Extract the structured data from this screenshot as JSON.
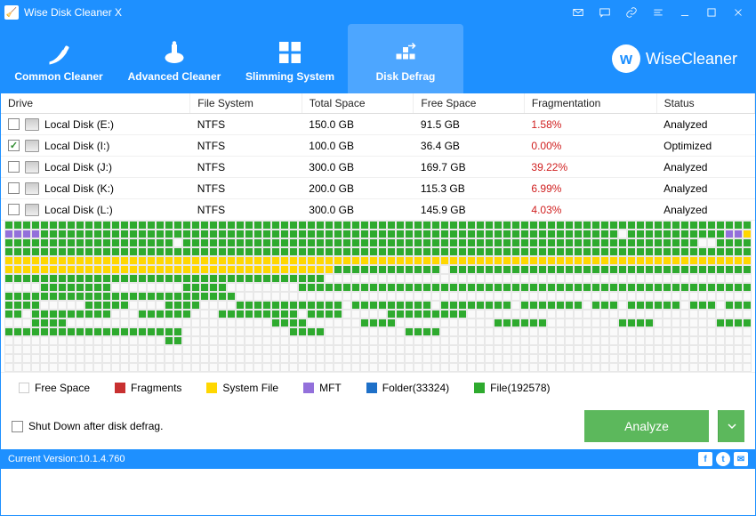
{
  "window": {
    "title": "Wise Disk Cleaner X",
    "brand": "WiseCleaner",
    "brand_logo_letter": "w"
  },
  "tabs": [
    {
      "label": "Common Cleaner",
      "active": false
    },
    {
      "label": "Advanced Cleaner",
      "active": false
    },
    {
      "label": "Slimming System",
      "active": false
    },
    {
      "label": "Disk Defrag",
      "active": true
    }
  ],
  "columns": [
    "Drive",
    "File System",
    "Total Space",
    "Free Space",
    "Fragmentation",
    "Status"
  ],
  "drives": [
    {
      "checked": false,
      "name": "Local Disk (E:)",
      "fs": "NTFS",
      "total": "150.0 GB",
      "free": "91.5 GB",
      "frag": "1.58%",
      "status": "Analyzed"
    },
    {
      "checked": true,
      "name": "Local Disk (I:)",
      "fs": "NTFS",
      "total": "100.0 GB",
      "free": "36.4 GB",
      "frag": "0.00%",
      "status": "Optimized"
    },
    {
      "checked": false,
      "name": "Local Disk (J:)",
      "fs": "NTFS",
      "total": "300.0 GB",
      "free": "169.7 GB",
      "frag": "39.22%",
      "status": "Analyzed"
    },
    {
      "checked": false,
      "name": "Local Disk (K:)",
      "fs": "NTFS",
      "total": "200.0 GB",
      "free": "115.3 GB",
      "frag": "6.99%",
      "status": "Analyzed"
    },
    {
      "checked": false,
      "name": "Local Disk (L:)",
      "fs": "NTFS",
      "total": "300.0 GB",
      "free": "145.9 GB",
      "frag": "4.03%",
      "status": "Analyzed"
    }
  ],
  "defrag_map": {
    "cols": 84,
    "rows_pattern": [
      "gggggggggggggggggggggggggggggggggggggggggggggggggggggggggggggggggggggggggggggggggggg",
      "ppppgggggggggggggggggggggggggggggggggggggggggggggggggggggggggggggggggwgggggggggggppy",
      "gggggggggggggggggggwggggggggggggggggggggggggggggggggggggggggggggggggggggggggggwwgggg",
      "gggggggggggggggggggggggggggggggggggggggggggggggggggggggggggggggggggggggggggggggggggg",
      "yyyyyyyyyyyyyyyyyyyyyyyyyyyyyyyyyyyyyyyyyyyyyyyyyyyyyyyyyyyyyyyyyyyyyyyyyyyyyyyyyyyy",
      "yyyyyyyyyyyyyyyyyyyyyyyyyyyyyyyyyyyyyggggggggggggwgggggggggggggggggggggggggggggggggg",
      "ggggggggggggggggggggggggggggggggggggwwwwwwwwwwwwwwwwwwwwwwwwwwwwwwwwwwwwwwwwwwwwwwww",
      "wwwwggggggggwwwwwwwwgggggwwwwwwwwggggggggggggggggggggggggggggggggggggggggggggggggggg",
      "ggggggggggggggggggggggggggwwwwwwwwwwwwwwwwwwwwwwwwwwwwwwwwwwwwwwwwwwwwwwwwwwwwwwwwww",
      "ggggwwwwwgggggwwwwggggwwwwggggggggggggwgggggggggwggggggggwgggggggwgggwggggggwgggwggg",
      "ggwgggggggggwwwggggggwwwgggggggggwggggwwwwwgggggggggwwwwwwwwwwwwwwwwwwwwwwwwwwwwwwww",
      "wwwggggwwwwwwwwwwwwwwwwwwwwwwwggggwwwwwwggggwwwwwwwwwwwggggggwwwwwwwwggggwwwwwwwgggg",
      "ggggggggggggggggggggwwwwwwwwwwwwggggwwwwwwwwwggggwwwwwwwwwwwwwwwwwwwwwwwwwwwwwwwwwww",
      "wwwwwwwwwwwwwwwwwwggwwwwwwwwwwwwwwwwwwwwwwwwwwwwwwwwwwwwwwwwwwwwwwwwwwwwwwwwwwwwwwww",
      "wwwwwwwwwwwwwwwwwwwwwwwwwwwwwwwwwwwwwwwwwwwwwwwwwwwwwwwwwwwwwwwwwwwwwwwwwwwwwwwwwwww",
      "wwwwwwwwwwwwwwwwwwwwwwwwwwwwwwwwwwwwwwwwwwwwwwwwwwwwwwwwwwwwwwwwwwwwwwwwwwwwwwwwwwww",
      "wwwwwwwwwwwwwwwwwwwwwwwwwwwwwwwwwwwwwwwwwwwwwwwwwwwwwwwwwwwwwwwwwwwwwwwwwwwwwwwwwwww"
    ],
    "cell_colors": {
      "g": "#2eaa2e",
      "w": "#fafafa",
      "y": "#ffd700",
      "p": "#9370db",
      "b": "#1e70c8",
      "r": "#c83030"
    }
  },
  "legend": [
    {
      "label": "Free Space",
      "color": "#ffffff",
      "border": "#ccc"
    },
    {
      "label": "Fragments",
      "color": "#c83030"
    },
    {
      "label": "System File",
      "color": "#ffd700"
    },
    {
      "label": "MFT",
      "color": "#9370db"
    },
    {
      "label": "Folder(33324)",
      "color": "#1e70c8"
    },
    {
      "label": "File(192578)",
      "color": "#2eaa2e"
    }
  ],
  "shutdown_label": "Shut Down after disk defrag.",
  "analyze_label": "Analyze",
  "version_label": "Current Version:10.1.4.760"
}
